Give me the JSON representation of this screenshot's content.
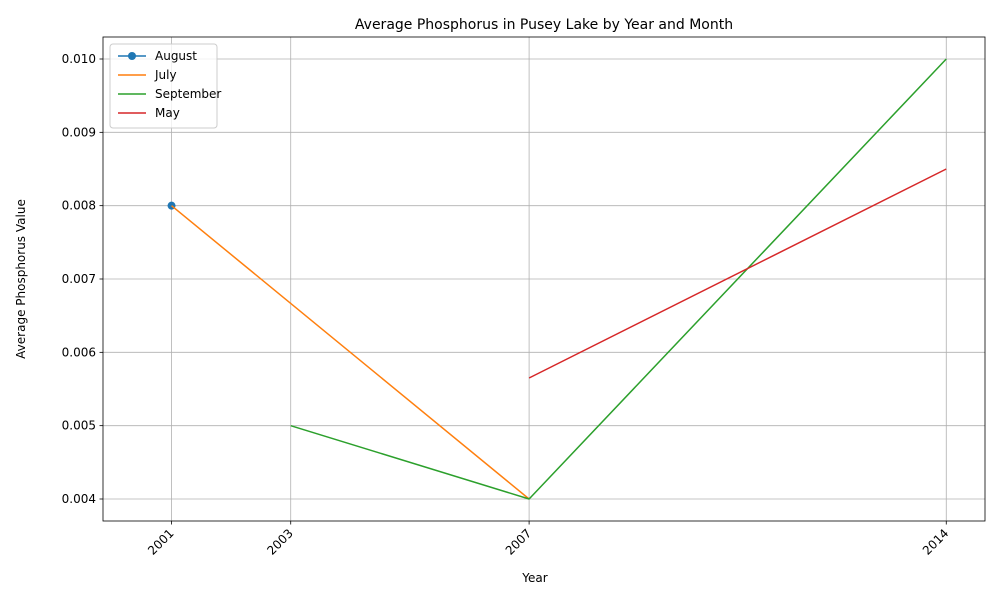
{
  "chart_data": {
    "type": "line",
    "title": "Average Phosphorus in Pusey Lake by Year and Month",
    "xlabel": "Year",
    "ylabel": "Average Phosphorus Value",
    "xlim": [
      1999.85,
      2014.65
    ],
    "ylim": [
      0.0037,
      0.0103
    ],
    "x_ticks": [
      2001,
      2003,
      2007,
      2014
    ],
    "y_ticks": [
      0.004,
      0.005,
      0.006,
      0.007,
      0.008,
      0.009,
      0.01
    ],
    "y_tick_labels": [
      "0.004",
      "0.005",
      "0.006",
      "0.007",
      "0.008",
      "0.009",
      "0.010"
    ],
    "grid": true,
    "legend_position": "top-left",
    "series": [
      {
        "name": "August",
        "color": "#1f77b4",
        "marker": "circle",
        "points": [
          {
            "x": 2001,
            "y": 0.008
          }
        ]
      },
      {
        "name": "July",
        "color": "#ff7f0e",
        "marker": "none",
        "points": [
          {
            "x": 2001,
            "y": 0.008
          },
          {
            "x": 2007,
            "y": 0.004
          }
        ]
      },
      {
        "name": "September",
        "color": "#2ca02c",
        "marker": "none",
        "points": [
          {
            "x": 2003,
            "y": 0.005
          },
          {
            "x": 2007,
            "y": 0.004
          },
          {
            "x": 2014,
            "y": 0.01
          }
        ]
      },
      {
        "name": "May",
        "color": "#d62728",
        "marker": "none",
        "points": [
          {
            "x": 2007,
            "y": 0.00565
          },
          {
            "x": 2014,
            "y": 0.0085
          }
        ]
      }
    ]
  }
}
